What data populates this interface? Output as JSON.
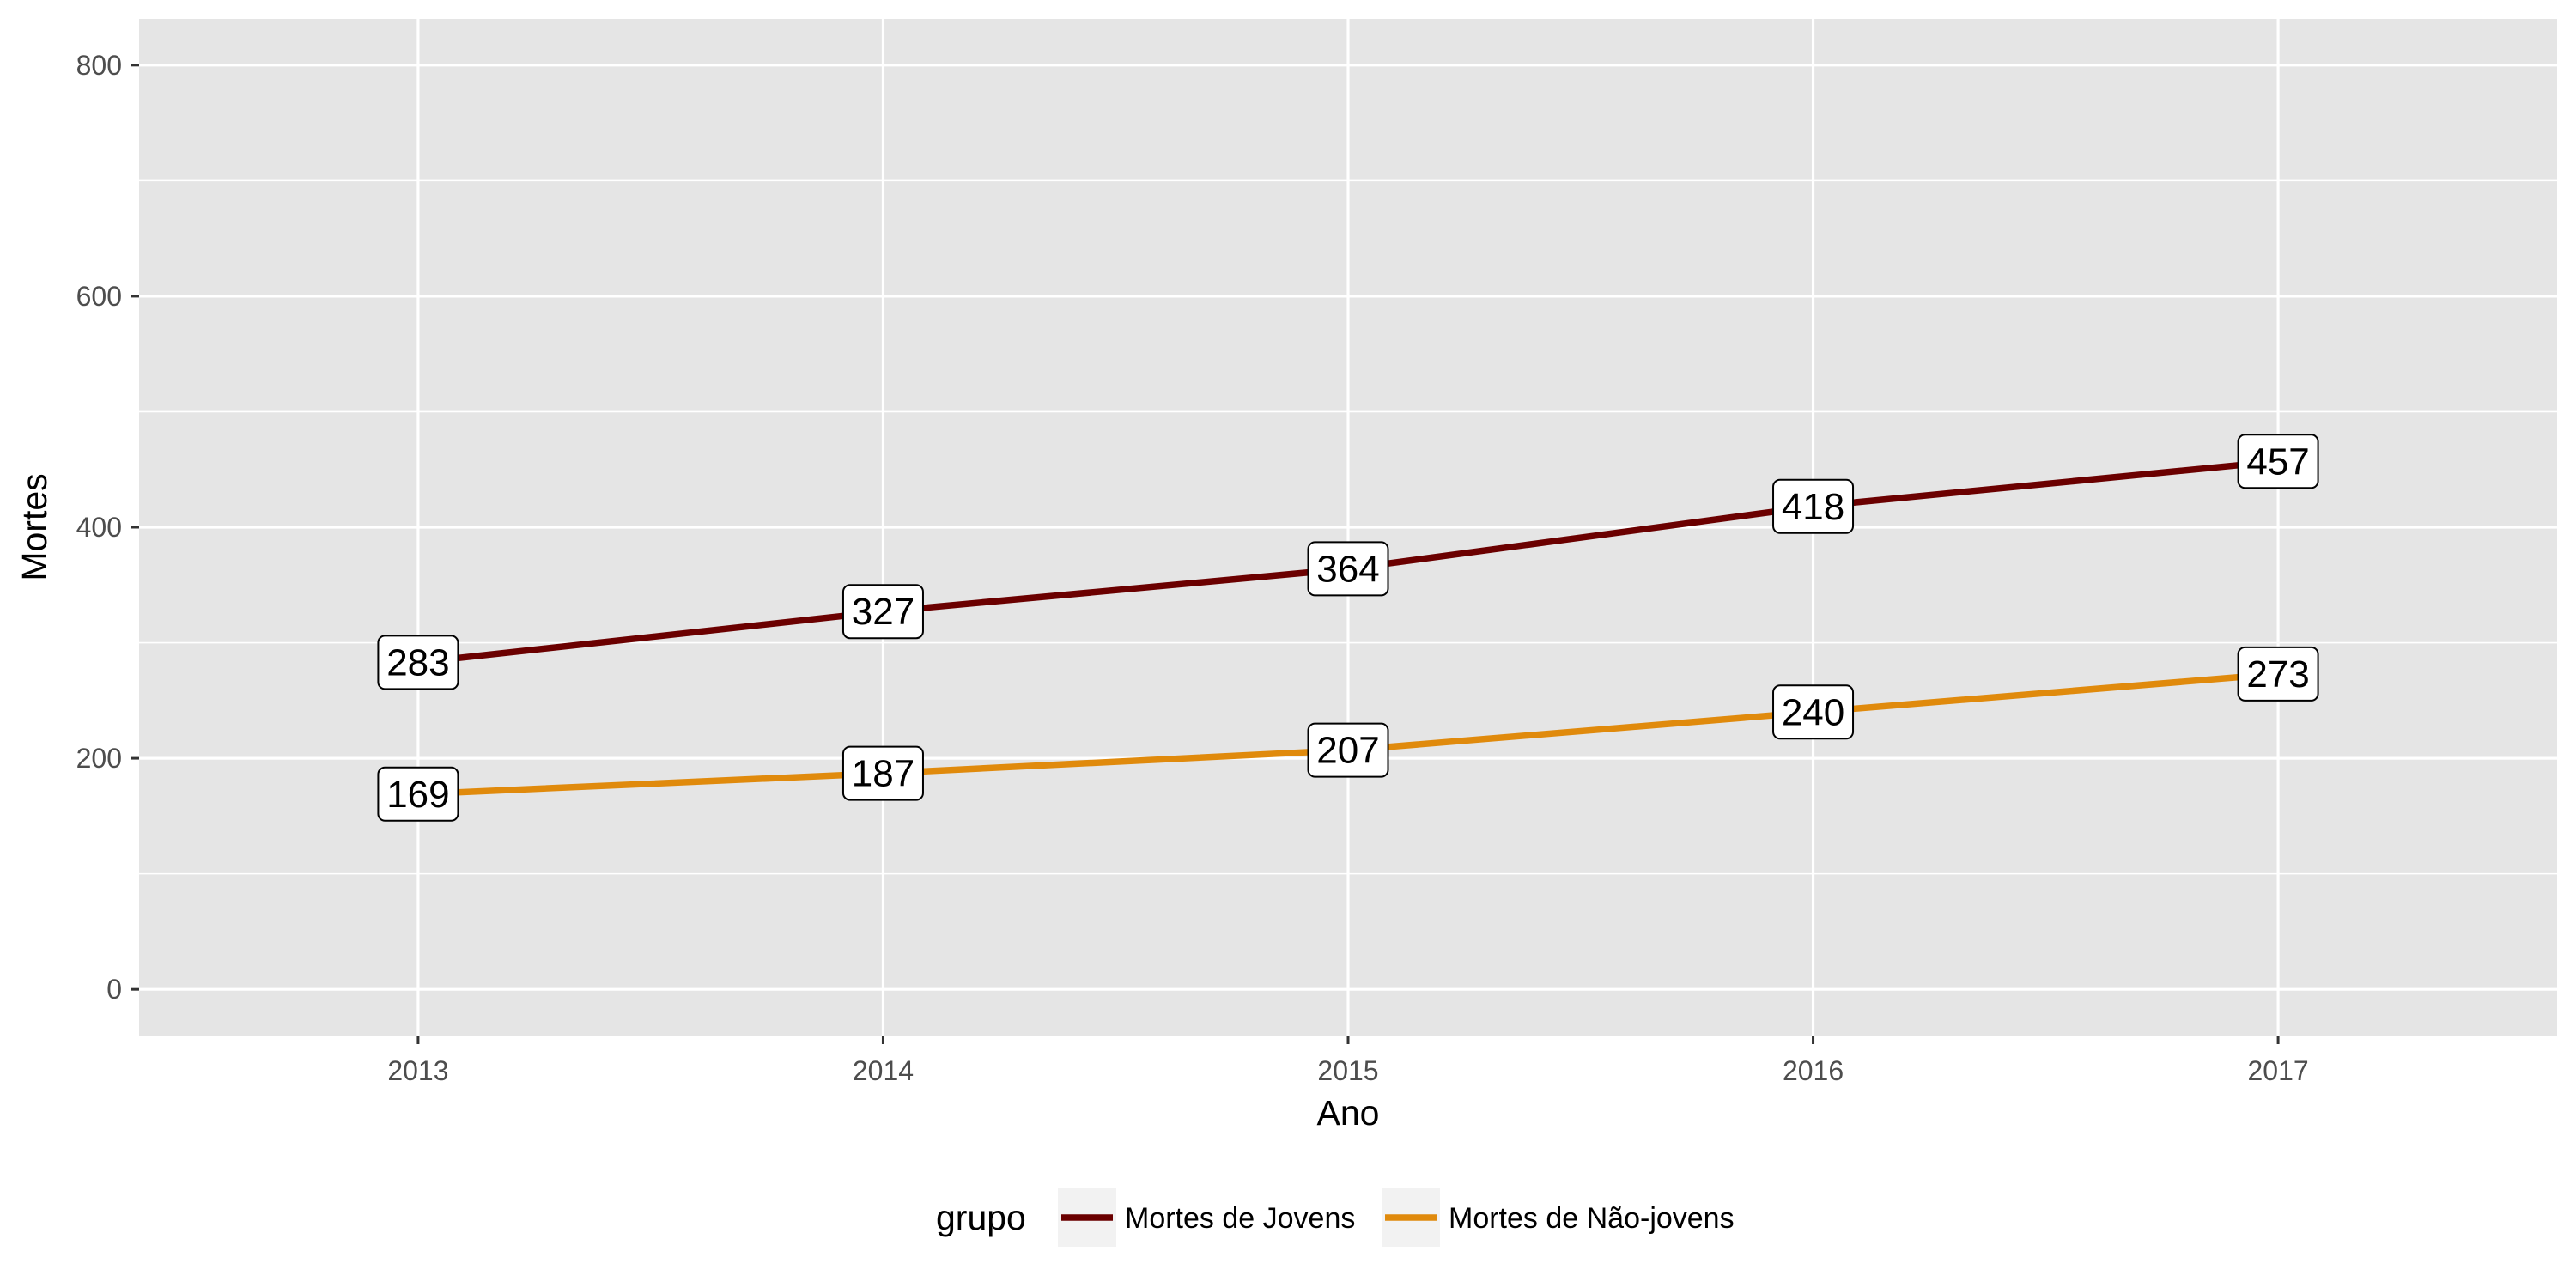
{
  "chart_data": {
    "type": "line",
    "xlabel": "Ano",
    "ylabel": "Mortes",
    "x": [
      2013,
      2014,
      2015,
      2016,
      2017
    ],
    "x_tick_labels": [
      "2013",
      "2014",
      "2015",
      "2016",
      "2017"
    ],
    "xlim": [
      2012.4,
      2017.6
    ],
    "ylim": [
      -40,
      840
    ],
    "y_ticks": [
      0,
      200,
      400,
      600,
      800
    ],
    "y_tick_labels": [
      "0",
      "200",
      "400",
      "600",
      "800"
    ],
    "grid": true,
    "legend": {
      "title": "grupo",
      "position": "bottom"
    },
    "series": [
      {
        "name": "Mortes de Jovens",
        "color": "#6b0000",
        "values": [
          283,
          327,
          364,
          418,
          457
        ],
        "labels": [
          "283",
          "327",
          "364",
          "418",
          "457"
        ]
      },
      {
        "name": "Mortes de Não-jovens",
        "color": "#e08a0c",
        "values": [
          169,
          187,
          207,
          240,
          273
        ],
        "labels": [
          "169",
          "187",
          "207",
          "240",
          "273"
        ]
      }
    ],
    "colors": {
      "panel_background": "#e5e5e5",
      "grid_major": "#ffffff",
      "label_fill": "#ffffff"
    }
  }
}
